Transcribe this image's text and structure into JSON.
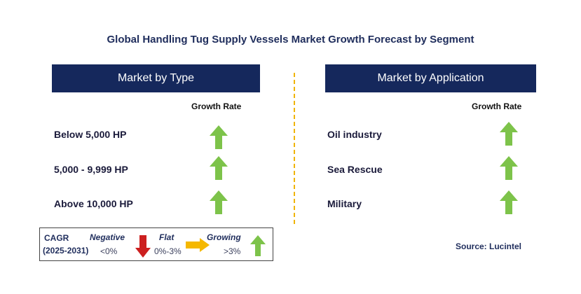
{
  "title": "Global Handling Tug Supply Vessels Market Growth Forecast by Segment",
  "colors": {
    "header_bg": "#15285c",
    "up_arrow": "#7dc34a",
    "down_arrow": "#cc1f1f",
    "flat_arrow": "#f5b800",
    "divider": "#f0b400"
  },
  "left_panel": {
    "header": "Market by Type",
    "growth_label": "Growth Rate",
    "segments": [
      {
        "label": "Below 5,000 HP",
        "trend": "up-arrow-icon"
      },
      {
        "label": "5,000 - 9,999 HP",
        "trend": "up-arrow-icon"
      },
      {
        "label": "Above 10,000 HP",
        "trend": "up-arrow-icon"
      }
    ]
  },
  "right_panel": {
    "header": "Market by Application",
    "growth_label": "Growth Rate",
    "segments": [
      {
        "label": "Oil industry",
        "trend": "up-arrow-icon"
      },
      {
        "label": "Sea Rescue",
        "trend": "up-arrow-icon"
      },
      {
        "label": "Military",
        "trend": "up-arrow-icon"
      }
    ]
  },
  "legend": {
    "cagr_label": "CAGR",
    "period": "(2025-2031)",
    "negative_label": "Negative",
    "negative_value": "<0%",
    "flat_label": "Flat",
    "flat_value": "0%-3%",
    "growing_label": "Growing",
    "growing_value": ">3%"
  },
  "source": "Source: Lucintel"
}
